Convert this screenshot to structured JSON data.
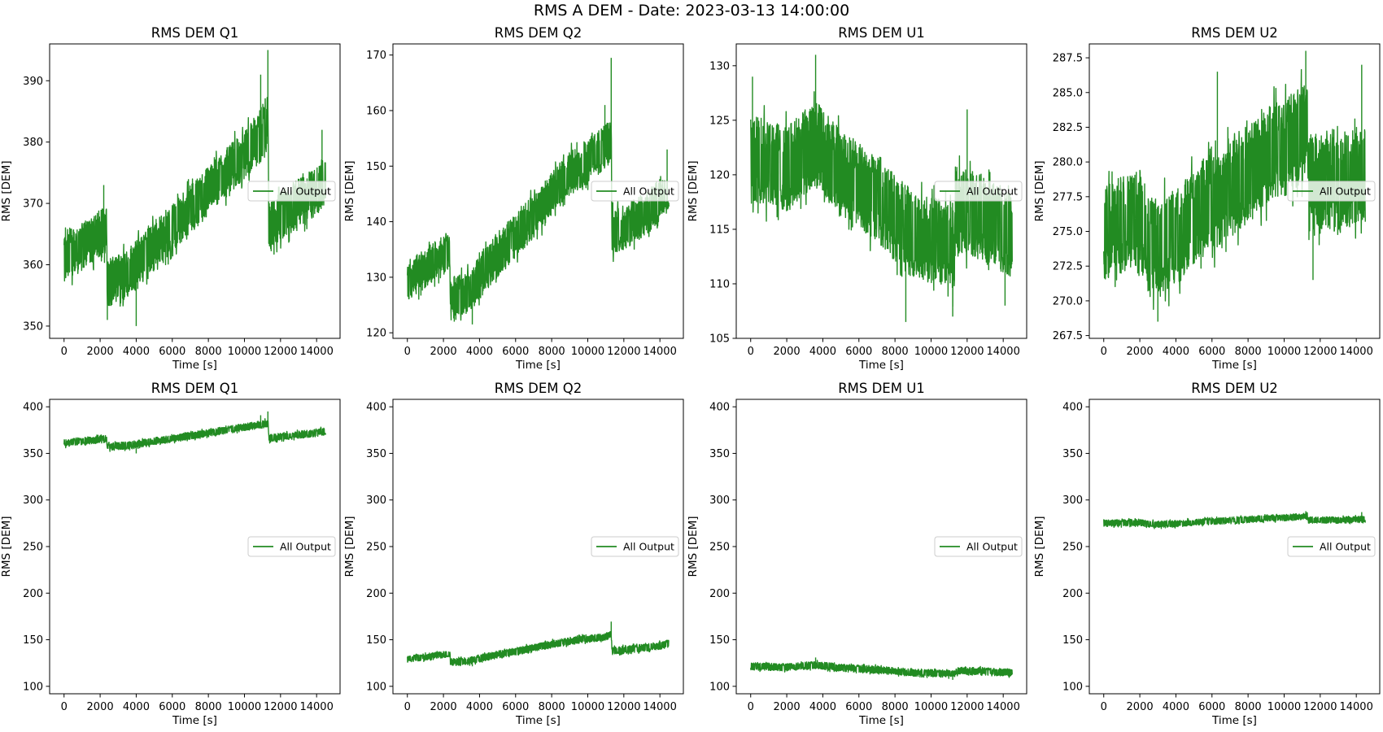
{
  "suptitle": "RMS A DEM - Date: 2023-03-13 14:00:00",
  "series_color": "#228b22",
  "chart_data": [
    {
      "type": "line",
      "title": "RMS DEM Q1",
      "xlabel": "Time [s]",
      "ylabel": "RMS [DEM]",
      "legend": "All Output",
      "legend_loc": "right",
      "xlim": [
        -800,
        15300
      ],
      "ylim": [
        348,
        396
      ],
      "xticks": [
        0,
        2000,
        4000,
        6000,
        8000,
        10000,
        12000,
        14000
      ],
      "yticks": [
        350,
        360,
        370,
        380,
        390
      ],
      "yticklabels": [
        "350",
        "360",
        "370",
        "380",
        "390"
      ],
      "envelope": {
        "x": [
          0,
          500,
          1000,
          1500,
          2000,
          2350,
          2400,
          3000,
          3500,
          4000,
          5000,
          6000,
          7000,
          8000,
          9000,
          10000,
          11000,
          11300,
          11350,
          12000,
          13000,
          14000,
          14500
        ],
        "center": [
          361,
          362,
          363,
          364,
          365,
          365.5,
          357,
          358,
          358.5,
          360,
          363,
          366,
          369,
          372,
          375,
          378,
          381,
          383,
          366,
          368,
          370,
          372,
          374
        ],
        "half": [
          4,
          4,
          4,
          4,
          4,
          4,
          4,
          4,
          4,
          4,
          4,
          4,
          4,
          4,
          4,
          4,
          4,
          4,
          4,
          4,
          4,
          4,
          4
        ]
      },
      "spikes": [
        {
          "x": 11300,
          "y": 395
        },
        {
          "x": 2400,
          "y": 351
        },
        {
          "x": 4000,
          "y": 350
        },
        {
          "x": 10900,
          "y": 391
        },
        {
          "x": 14300,
          "y": 382
        },
        {
          "x": 2200,
          "y": 373
        }
      ]
    },
    {
      "type": "line",
      "title": "RMS DEM Q2",
      "xlabel": "Time [s]",
      "ylabel": "RMS [DEM]",
      "legend": "All Output",
      "legend_loc": "right",
      "xlim": [
        -800,
        15300
      ],
      "ylim": [
        119,
        172
      ],
      "xticks": [
        0,
        2000,
        4000,
        6000,
        8000,
        10000,
        12000,
        14000
      ],
      "yticks": [
        120,
        130,
        140,
        150,
        160,
        170
      ],
      "yticklabels": [
        "120",
        "130",
        "140",
        "150",
        "160",
        "170"
      ],
      "envelope": {
        "x": [
          0,
          500,
          1000,
          1500,
          2000,
          2350,
          2400,
          3000,
          3500,
          4000,
          5000,
          6000,
          7000,
          8000,
          9000,
          10000,
          11000,
          11300,
          11350,
          12000,
          13000,
          14000,
          14500
        ],
        "center": [
          129,
          130.5,
          131.5,
          133,
          134,
          135,
          126,
          126.5,
          127.5,
          130,
          134,
          137.5,
          141,
          145,
          148.5,
          151,
          153.5,
          155,
          138,
          139,
          141,
          143.5,
          146
        ],
        "half": [
          3.5,
          3.5,
          3.5,
          3.5,
          3.5,
          3.5,
          4,
          4,
          4,
          4,
          4,
          4,
          4,
          4,
          4,
          4,
          4,
          4,
          4,
          4,
          4,
          4,
          4
        ]
      },
      "spikes": [
        {
          "x": 11300,
          "y": 169.5
        },
        {
          "x": 2600,
          "y": 122
        },
        {
          "x": 3600,
          "y": 121.5
        },
        {
          "x": 10950,
          "y": 161
        },
        {
          "x": 14400,
          "y": 153
        }
      ]
    },
    {
      "type": "line",
      "title": "RMS DEM U1",
      "xlabel": "Time [s]",
      "ylabel": "RMS [DEM]",
      "legend": "All Output",
      "legend_loc": "right",
      "xlim": [
        -800,
        15300
      ],
      "ylim": [
        105,
        132
      ],
      "xticks": [
        0,
        2000,
        4000,
        6000,
        8000,
        10000,
        12000,
        14000
      ],
      "yticks": [
        105,
        110,
        115,
        120,
        125,
        130
      ],
      "yticklabels": [
        "105",
        "110",
        "115",
        "120",
        "125",
        "130"
      ],
      "envelope": {
        "x": [
          0,
          1000,
          2000,
          3000,
          3500,
          4000,
          5000,
          6000,
          7000,
          8000,
          9000,
          10000,
          11000,
          11300,
          11350,
          12000,
          13000,
          14000,
          14500
        ],
        "center": [
          121.5,
          121,
          120.5,
          122,
          123,
          122,
          120,
          119,
          118,
          116,
          114.5,
          114,
          113.5,
          113,
          116.5,
          116.5,
          116,
          115,
          114.5
        ],
        "half": [
          4,
          4,
          4,
          4,
          4,
          4,
          4,
          4,
          4,
          4,
          4,
          4,
          4,
          4,
          4,
          4,
          4,
          4,
          4
        ]
      },
      "spikes": [
        {
          "x": 3600,
          "y": 131
        },
        {
          "x": 8600,
          "y": 106.5
        },
        {
          "x": 11200,
          "y": 107
        },
        {
          "x": 100,
          "y": 129
        },
        {
          "x": 12000,
          "y": 126
        },
        {
          "x": 14100,
          "y": 108
        }
      ]
    },
    {
      "type": "line",
      "title": "RMS DEM U2",
      "xlabel": "Time [s]",
      "ylabel": "RMS [DEM]",
      "legend": "All Output",
      "legend_loc": "right",
      "xlim": [
        -800,
        15300
      ],
      "ylim": [
        267.3,
        288.5
      ],
      "xticks": [
        0,
        2000,
        4000,
        6000,
        8000,
        10000,
        12000,
        14000
      ],
      "yticks": [
        267.5,
        270.0,
        272.5,
        275.0,
        277.5,
        280.0,
        282.5,
        285.0,
        287.5
      ],
      "yticklabels": [
        "267.5",
        "270.0",
        "272.5",
        "275.0",
        "277.5",
        "280.0",
        "282.5",
        "285.0",
        "287.5"
      ],
      "envelope": {
        "x": [
          0,
          1000,
          2000,
          2500,
          3000,
          4000,
          5000,
          6000,
          7000,
          8000,
          9000,
          10000,
          11000,
          11300,
          11350,
          12000,
          13000,
          14000,
          14500
        ],
        "center": [
          275,
          275.5,
          276,
          274,
          274,
          274.5,
          276,
          277,
          278,
          279,
          280.5,
          281,
          282,
          282.5,
          278.5,
          278.5,
          278.5,
          279,
          279.5
        ],
        "half": [
          3.5,
          3.5,
          3.5,
          3.5,
          3.5,
          3.5,
          3.5,
          3.5,
          3.5,
          3.5,
          3.5,
          3.5,
          3.5,
          3.5,
          3.5,
          3.5,
          3.5,
          3.5,
          3.5
        ]
      },
      "spikes": [
        {
          "x": 3000,
          "y": 268.5
        },
        {
          "x": 11200,
          "y": 288
        },
        {
          "x": 11600,
          "y": 271.5
        },
        {
          "x": 6300,
          "y": 286.5
        },
        {
          "x": 14300,
          "y": 287
        }
      ]
    },
    {
      "type": "line",
      "title": "RMS DEM Q1",
      "xlabel": "Time [s]",
      "ylabel": "RMS [DEM]",
      "legend": "All Output",
      "legend_loc": "right",
      "xlim": [
        -800,
        15300
      ],
      "ylim": [
        92,
        408
      ],
      "xticks": [
        0,
        2000,
        4000,
        6000,
        8000,
        10000,
        12000,
        14000
      ],
      "yticks": [
        100,
        150,
        200,
        250,
        300,
        350,
        400
      ],
      "yticklabels": [
        "100",
        "150",
        "200",
        "250",
        "300",
        "350",
        "400"
      ],
      "envelope": {
        "x": [
          0,
          500,
          1000,
          1500,
          2000,
          2350,
          2400,
          3000,
          3500,
          4000,
          5000,
          6000,
          7000,
          8000,
          9000,
          10000,
          11000,
          11300,
          11350,
          12000,
          13000,
          14000,
          14500
        ],
        "center": [
          361,
          362,
          363,
          364,
          365,
          365.5,
          357,
          358,
          358.5,
          360,
          363,
          366,
          369,
          372,
          375,
          378,
          381,
          383,
          366,
          368,
          370,
          372,
          374
        ],
        "half": [
          4,
          4,
          4,
          4,
          4,
          4,
          4,
          4,
          4,
          4,
          4,
          4,
          4,
          4,
          4,
          4,
          4,
          4,
          4,
          4,
          4,
          4,
          4
        ]
      },
      "spikes": [
        {
          "x": 11300,
          "y": 395
        },
        {
          "x": 4000,
          "y": 350
        },
        {
          "x": 10900,
          "y": 391
        }
      ]
    },
    {
      "type": "line",
      "title": "RMS DEM Q2",
      "xlabel": "Time [s]",
      "ylabel": "RMS [DEM]",
      "legend": "All Output",
      "legend_loc": "right",
      "xlim": [
        -800,
        15300
      ],
      "ylim": [
        92,
        408
      ],
      "xticks": [
        0,
        2000,
        4000,
        6000,
        8000,
        10000,
        12000,
        14000
      ],
      "yticks": [
        100,
        150,
        200,
        250,
        300,
        350,
        400
      ],
      "yticklabels": [
        "100",
        "150",
        "200",
        "250",
        "300",
        "350",
        "400"
      ],
      "envelope": {
        "x": [
          0,
          500,
          1000,
          1500,
          2000,
          2350,
          2400,
          3000,
          3500,
          4000,
          5000,
          6000,
          7000,
          8000,
          9000,
          10000,
          11000,
          11300,
          11350,
          12000,
          13000,
          14000,
          14500
        ],
        "center": [
          129,
          130.5,
          131.5,
          133,
          134,
          135,
          126,
          126.5,
          127.5,
          130,
          134,
          137.5,
          141,
          145,
          148.5,
          151,
          153.5,
          155,
          138,
          139,
          141,
          143.5,
          146
        ],
        "half": [
          3.5,
          3.5,
          3.5,
          3.5,
          3.5,
          3.5,
          4,
          4,
          4,
          4,
          4,
          4,
          4,
          4,
          4,
          4,
          4,
          4,
          4,
          4,
          4,
          4,
          4
        ]
      },
      "spikes": [
        {
          "x": 11300,
          "y": 169.5
        },
        {
          "x": 3600,
          "y": 121.5
        }
      ]
    },
    {
      "type": "line",
      "title": "RMS DEM U1",
      "xlabel": "Time [s]",
      "ylabel": "RMS [DEM]",
      "legend": "All Output",
      "legend_loc": "right",
      "xlim": [
        -800,
        15300
      ],
      "ylim": [
        92,
        408
      ],
      "xticks": [
        0,
        2000,
        4000,
        6000,
        8000,
        10000,
        12000,
        14000
      ],
      "yticks": [
        100,
        150,
        200,
        250,
        300,
        350,
        400
      ],
      "yticklabels": [
        "100",
        "150",
        "200",
        "250",
        "300",
        "350",
        "400"
      ],
      "envelope": {
        "x": [
          0,
          1000,
          2000,
          3000,
          3500,
          4000,
          5000,
          6000,
          7000,
          8000,
          9000,
          10000,
          11000,
          11300,
          11350,
          12000,
          13000,
          14000,
          14500
        ],
        "center": [
          121.5,
          121,
          120.5,
          122,
          123,
          122,
          120,
          119,
          118,
          116,
          114.5,
          114,
          113.5,
          113,
          116.5,
          116.5,
          116,
          115,
          114.5
        ],
        "half": [
          4,
          4,
          4,
          4,
          4,
          4,
          4,
          4,
          4,
          4,
          4,
          4,
          4,
          4,
          4,
          4,
          4,
          4,
          4
        ]
      },
      "spikes": [
        {
          "x": 3600,
          "y": 131
        },
        {
          "x": 11200,
          "y": 107
        }
      ]
    },
    {
      "type": "line",
      "title": "RMS DEM U2",
      "xlabel": "Time [s]",
      "ylabel": "RMS [DEM]",
      "legend": "All Output",
      "legend_loc": "right",
      "xlim": [
        -800,
        15300
      ],
      "ylim": [
        92,
        408
      ],
      "xticks": [
        0,
        2000,
        4000,
        6000,
        8000,
        10000,
        12000,
        14000
      ],
      "yticks": [
        100,
        150,
        200,
        250,
        300,
        350,
        400
      ],
      "yticklabels": [
        "100",
        "150",
        "200",
        "250",
        "300",
        "350",
        "400"
      ],
      "envelope": {
        "x": [
          0,
          1000,
          2000,
          2500,
          3000,
          4000,
          5000,
          6000,
          7000,
          8000,
          9000,
          10000,
          11000,
          11300,
          11350,
          12000,
          13000,
          14000,
          14500
        ],
        "center": [
          275,
          275.5,
          276,
          274,
          274,
          274.5,
          276,
          277,
          278,
          279,
          280.5,
          281,
          282,
          282.5,
          278.5,
          278.5,
          278.5,
          279,
          279.5
        ],
        "half": [
          3.5,
          3.5,
          3.5,
          3.5,
          3.5,
          3.5,
          3.5,
          3.5,
          3.5,
          3.5,
          3.5,
          3.5,
          3.5,
          3.5,
          3.5,
          3.5,
          3.5,
          3.5,
          3.5
        ]
      },
      "spikes": [
        {
          "x": 11200,
          "y": 288
        },
        {
          "x": 14300,
          "y": 287
        }
      ]
    }
  ]
}
